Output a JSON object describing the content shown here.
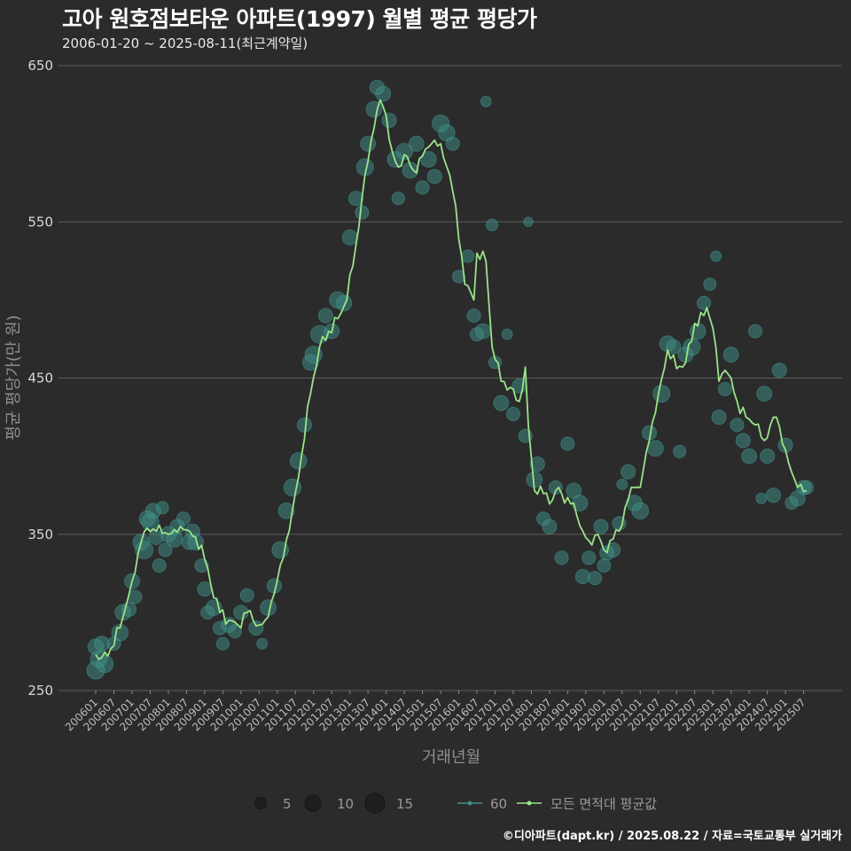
{
  "title": "고아 원호점보타운 아파트(1997) 월별 평균 평당가",
  "subtitle": "2006-01-20 ~ 2025-08-11(최근계약일)",
  "caption": "©디아파트(dapt.kr) / 2025.08.22 / 자료=국토교통부 실거래가",
  "colors": {
    "background": "#2b2b2c",
    "grid": "#5c5c5c",
    "bubble": "#3f8f86",
    "avg_line": "#9be38a"
  },
  "legend": {
    "size_values": [
      "5",
      "10",
      "15"
    ],
    "series_label": "60",
    "avg_label": "모든 면적대 평균값"
  },
  "chart_data": {
    "type": "line",
    "xlabel": "거래년월",
    "ylabel": "평균 평당가(만 원)",
    "ylim": [
      250,
      650
    ],
    "yticks": [
      250,
      350,
      450,
      550,
      650
    ],
    "xticks": [
      "200601",
      "200607",
      "200701",
      "200707",
      "200801",
      "200807",
      "200901",
      "200907",
      "201001",
      "201007",
      "201101",
      "201107",
      "201201",
      "201207",
      "201301",
      "201307",
      "201401",
      "201407",
      "201501",
      "201507",
      "201601",
      "201607",
      "201701",
      "201707",
      "201801",
      "201807",
      "201901",
      "201907",
      "202001",
      "202007",
      "202101",
      "202107",
      "202201",
      "202207",
      "202301",
      "202307",
      "202401",
      "202407",
      "202501",
      "202507"
    ],
    "grid": "horizontal",
    "legend_position": "bottom",
    "series": [
      {
        "name": "모든 면적대 평균값",
        "anchors": [
          [
            "200601",
            273
          ],
          [
            "200603",
            271
          ],
          [
            "200606",
            277
          ],
          [
            "200609",
            290
          ],
          [
            "200701",
            320
          ],
          [
            "200704",
            345
          ],
          [
            "200706",
            354
          ],
          [
            "200709",
            352
          ],
          [
            "200712",
            351
          ],
          [
            "200803",
            353
          ],
          [
            "200806",
            353
          ],
          [
            "200809",
            349
          ],
          [
            "200812",
            343
          ],
          [
            "200903",
            318
          ],
          [
            "200906",
            300
          ],
          [
            "200909",
            295
          ],
          [
            "200912",
            292
          ],
          [
            "201003",
            300
          ],
          [
            "201007",
            292
          ],
          [
            "201009",
            295
          ],
          [
            "201012",
            312
          ],
          [
            "201103",
            335
          ],
          [
            "201106",
            365
          ],
          [
            "201109",
            400
          ],
          [
            "201112",
            440
          ],
          [
            "201203",
            470
          ],
          [
            "201206",
            480
          ],
          [
            "201209",
            488
          ],
          [
            "201212",
            500
          ],
          [
            "201303",
            535
          ],
          [
            "201306",
            580
          ],
          [
            "201309",
            610
          ],
          [
            "201311",
            628
          ],
          [
            "201401",
            618
          ],
          [
            "201403",
            595
          ],
          [
            "201405",
            585
          ],
          [
            "201407",
            593
          ],
          [
            "201410",
            583
          ],
          [
            "201501",
            592
          ],
          [
            "201504",
            600
          ],
          [
            "201507",
            600
          ],
          [
            "201510",
            580
          ],
          [
            "201512",
            560
          ],
          [
            "201603",
            510
          ],
          [
            "201606",
            500
          ],
          [
            "201607",
            530
          ],
          [
            "201610",
            525
          ],
          [
            "201612",
            470
          ],
          [
            "201703",
            448
          ],
          [
            "201706",
            444
          ],
          [
            "201709",
            435
          ],
          [
            "201711",
            457
          ],
          [
            "201712",
            420
          ],
          [
            "201802",
            378
          ],
          [
            "201805",
            376
          ],
          [
            "201808",
            372
          ],
          [
            "201810",
            380
          ],
          [
            "201812",
            370
          ],
          [
            "201903",
            370
          ],
          [
            "201906",
            352
          ],
          [
            "201908",
            346
          ],
          [
            "201911",
            350
          ],
          [
            "202001",
            340
          ],
          [
            "202003",
            346
          ],
          [
            "202006",
            352
          ],
          [
            "202009",
            372
          ],
          [
            "202011",
            380
          ],
          [
            "202101",
            380
          ],
          [
            "202104",
            410
          ],
          [
            "202107",
            440
          ],
          [
            "202110",
            468
          ],
          [
            "202201",
            456
          ],
          [
            "202204",
            460
          ],
          [
            "202207",
            485
          ],
          [
            "202210",
            490
          ],
          [
            "202211",
            495
          ],
          [
            "202301",
            482
          ],
          [
            "202303",
            448
          ],
          [
            "202305",
            455
          ],
          [
            "202307",
            450
          ],
          [
            "202309",
            435
          ],
          [
            "202312",
            425
          ],
          [
            "202403",
            420
          ],
          [
            "202406",
            410
          ],
          [
            "202408",
            420
          ],
          [
            "202410",
            425
          ],
          [
            "202412",
            408
          ],
          [
            "202503",
            390
          ],
          [
            "202505",
            380
          ],
          [
            "202508",
            378
          ]
        ]
      },
      {
        "name": "60",
        "type": "scatter",
        "points": [
          [
            "200601",
            263,
            12
          ],
          [
            "200601",
            278,
            9
          ],
          [
            "200602",
            270,
            10
          ],
          [
            "200603",
            280,
            8
          ],
          [
            "200604",
            267,
            11
          ],
          [
            "200607",
            280,
            6
          ],
          [
            "200609",
            287,
            10
          ],
          [
            "200610",
            300,
            9
          ],
          [
            "200612",
            302,
            7
          ],
          [
            "200701",
            320,
            8
          ],
          [
            "200702",
            310,
            6
          ],
          [
            "200704",
            345,
            10
          ],
          [
            "200705",
            340,
            12
          ],
          [
            "200706",
            360,
            9
          ],
          [
            "200707",
            358,
            11
          ],
          [
            "200708",
            365,
            8
          ],
          [
            "200709",
            348,
            7
          ],
          [
            "200710",
            330,
            6
          ],
          [
            "200711",
            367,
            5
          ],
          [
            "200712",
            340,
            6
          ],
          [
            "200801",
            350,
            9
          ],
          [
            "200803",
            347,
            10
          ],
          [
            "200804",
            355,
            7
          ],
          [
            "200806",
            360,
            6
          ],
          [
            "200808",
            345,
            8
          ],
          [
            "200809",
            352,
            7
          ],
          [
            "200810",
            345,
            9
          ],
          [
            "200812",
            330,
            6
          ],
          [
            "200901",
            315,
            7
          ],
          [
            "200902",
            300,
            6
          ],
          [
            "200904",
            303,
            9
          ],
          [
            "200906",
            290,
            6
          ],
          [
            "200907",
            280,
            5
          ],
          [
            "200909",
            292,
            8
          ],
          [
            "200911",
            288,
            6
          ],
          [
            "201001",
            300,
            7
          ],
          [
            "201003",
            311,
            6
          ],
          [
            "201006",
            290,
            7
          ],
          [
            "201008",
            280,
            3
          ],
          [
            "201010",
            303,
            9
          ],
          [
            "201012",
            317,
            7
          ],
          [
            "201102",
            340,
            10
          ],
          [
            "201104",
            365,
            9
          ],
          [
            "201106",
            380,
            11
          ],
          [
            "201108",
            397,
            10
          ],
          [
            "201110",
            420,
            7
          ],
          [
            "201112",
            460,
            9
          ],
          [
            "201201",
            465,
            11
          ],
          [
            "201203",
            478,
            12
          ],
          [
            "201205",
            490,
            7
          ],
          [
            "201207",
            480,
            8
          ],
          [
            "201209",
            500,
            10
          ],
          [
            "201211",
            498,
            9
          ],
          [
            "201301",
            540,
            8
          ],
          [
            "201303",
            565,
            7
          ],
          [
            "201305",
            556,
            6
          ],
          [
            "201306",
            585,
            11
          ],
          [
            "201307",
            600,
            8
          ],
          [
            "201309",
            622,
            9
          ],
          [
            "201310",
            636,
            7
          ],
          [
            "201312",
            632,
            8
          ],
          [
            "201402",
            615,
            7
          ],
          [
            "201404",
            590,
            9
          ],
          [
            "201405",
            565,
            5
          ],
          [
            "201407",
            595,
            10
          ],
          [
            "201409",
            583,
            9
          ],
          [
            "201411",
            600,
            8
          ],
          [
            "201501",
            572,
            6
          ],
          [
            "201503",
            590,
            9
          ],
          [
            "201505",
            579,
            7
          ],
          [
            "201507",
            613,
            11
          ],
          [
            "201509",
            607,
            10
          ],
          [
            "201511",
            600,
            6
          ],
          [
            "201601",
            515,
            5
          ],
          [
            "201604",
            528,
            5
          ],
          [
            "201606",
            490,
            6
          ],
          [
            "201607",
            478,
            6
          ],
          [
            "201609",
            480,
            8
          ],
          [
            "201610",
            627,
            3
          ],
          [
            "201612",
            548,
            4
          ],
          [
            "201701",
            460,
            5
          ],
          [
            "201703",
            434,
            8
          ],
          [
            "201705",
            478,
            3
          ],
          [
            "201707",
            427,
            6
          ],
          [
            "201709",
            445,
            7
          ],
          [
            "201711",
            413,
            6
          ],
          [
            "201712",
            550,
            2
          ],
          [
            "201802",
            385,
            9
          ],
          [
            "201803",
            395,
            7
          ],
          [
            "201805",
            360,
            6
          ],
          [
            "201807",
            355,
            7
          ],
          [
            "201809",
            380,
            6
          ],
          [
            "201811",
            335,
            6
          ],
          [
            "201901",
            408,
            6
          ],
          [
            "201903",
            378,
            8
          ],
          [
            "201905",
            370,
            9
          ],
          [
            "201906",
            323,
            7
          ],
          [
            "201908",
            335,
            6
          ],
          [
            "201910",
            322,
            6
          ],
          [
            "201912",
            355,
            7
          ],
          [
            "202001",
            330,
            6
          ],
          [
            "202002",
            338,
            7
          ],
          [
            "202004",
            340,
            7
          ],
          [
            "202006",
            357,
            6
          ],
          [
            "202007",
            382,
            3
          ],
          [
            "202009",
            390,
            7
          ],
          [
            "202011",
            370,
            9
          ],
          [
            "202101",
            365,
            10
          ],
          [
            "202104",
            415,
            7
          ],
          [
            "202106",
            405,
            9
          ],
          [
            "202108",
            440,
            11
          ],
          [
            "202110",
            472,
            9
          ],
          [
            "202112",
            470,
            7
          ],
          [
            "202202",
            403,
            5
          ],
          [
            "202204",
            465,
            8
          ],
          [
            "202206",
            470,
            11
          ],
          [
            "202208",
            480,
            9
          ],
          [
            "202210",
            498,
            6
          ],
          [
            "202212",
            510,
            5
          ],
          [
            "202302",
            528,
            3
          ],
          [
            "202303",
            425,
            7
          ],
          [
            "202305",
            443,
            6
          ],
          [
            "202307",
            465,
            8
          ],
          [
            "202309",
            420,
            6
          ],
          [
            "202311",
            410,
            7
          ],
          [
            "202401",
            400,
            8
          ],
          [
            "202403",
            480,
            6
          ],
          [
            "202405",
            373,
            3
          ],
          [
            "202406",
            440,
            8
          ],
          [
            "202407",
            400,
            7
          ],
          [
            "202409",
            375,
            7
          ],
          [
            "202411",
            455,
            7
          ],
          [
            "202501",
            407,
            7
          ],
          [
            "202503",
            370,
            5
          ],
          [
            "202505",
            373,
            8
          ],
          [
            "202507",
            380,
            7
          ],
          [
            "202508",
            380,
            6
          ]
        ]
      }
    ]
  }
}
